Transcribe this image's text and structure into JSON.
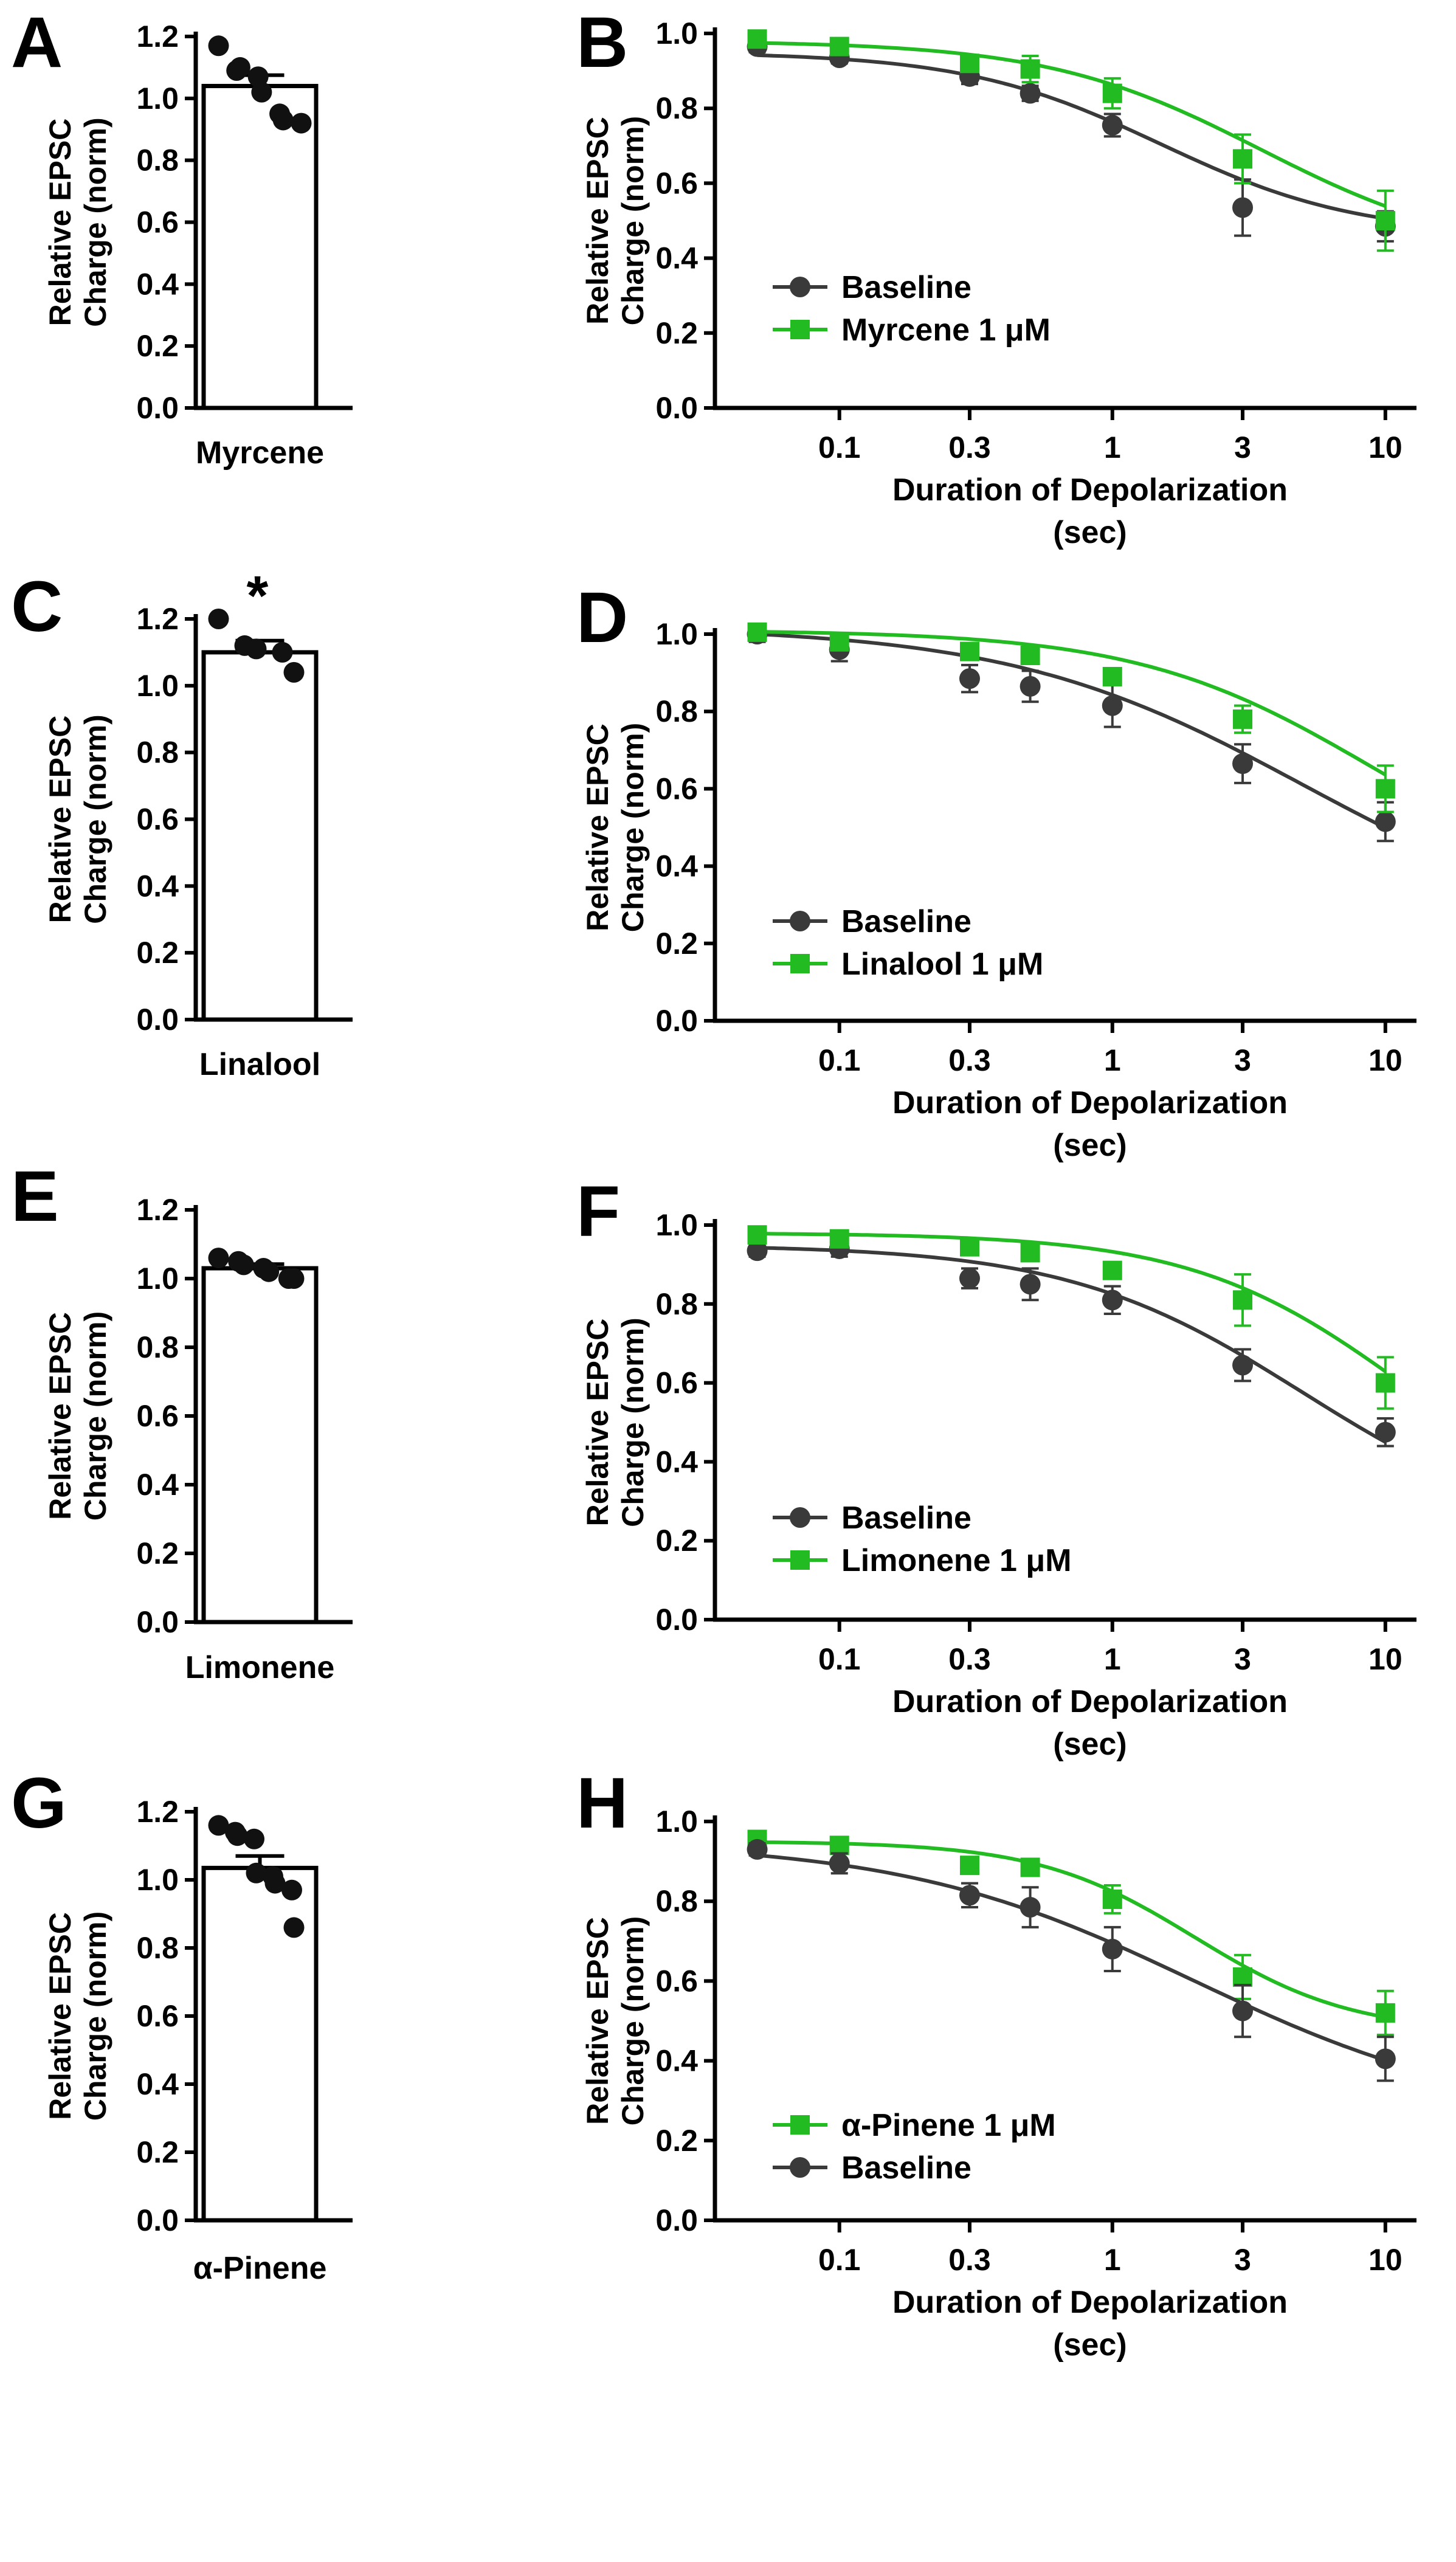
{
  "figure": {
    "colors": {
      "baseline": "#3a3a3a",
      "treatment": "#22bb22",
      "axis": "#000000",
      "bar_fill": "#ffffff"
    }
  },
  "chart_data": [
    {
      "panel": "A",
      "type": "bar",
      "category": "Myrcene",
      "mean": 1.04,
      "sem": 0.035,
      "points": [
        1.17,
        1.09,
        1.1,
        1.07,
        1.02,
        0.95,
        0.93,
        0.92
      ],
      "ylabel": [
        "Relative EPSC",
        "Charge (norm)"
      ],
      "ylim": [
        0,
        1.2
      ],
      "yticks": [
        0.0,
        0.2,
        0.4,
        0.6,
        0.8,
        1.0,
        1.2
      ],
      "ytick_labels": [
        "0.0",
        "0.2",
        "0.4",
        "0.6",
        "0.8",
        "1.0",
        "1.2"
      ],
      "significance": ""
    },
    {
      "panel": "B",
      "type": "line",
      "xscale": "log",
      "xlabel": [
        "Duration of Depolarization",
        "(sec)"
      ],
      "ylabel": [
        "Relative EPSC",
        "Charge (norm)"
      ],
      "ylim": [
        0,
        1.0
      ],
      "yticks": [
        0.0,
        0.2,
        0.4,
        0.6,
        0.8,
        1.0
      ],
      "ytick_labels": [
        "0.0",
        "0.2",
        "0.4",
        "0.6",
        "0.8",
        "1.0"
      ],
      "xticks": [
        0.1,
        0.3,
        1,
        3,
        10
      ],
      "xtick_labels": [
        "0.1",
        "0.3",
        "1",
        "3",
        "10"
      ],
      "x": [
        0.05,
        0.1,
        0.3,
        0.5,
        1,
        3,
        10
      ],
      "legend_position": "bottom-left",
      "series": [
        {
          "name": "Baseline",
          "marker": "circle",
          "color_key": "baseline",
          "values": [
            0.965,
            0.935,
            0.885,
            0.84,
            0.755,
            0.535,
            0.485
          ],
          "errors": [
            0.015,
            0.015,
            0.02,
            0.02,
            0.03,
            0.075,
            0.04
          ],
          "fit": {
            "top": 0.95,
            "bottom": 0.46,
            "ec50": 1.5,
            "hill": 1.2
          }
        },
        {
          "name": "Myrcene 1 μM",
          "marker": "square",
          "color_key": "treatment",
          "values": [
            0.985,
            0.965,
            0.92,
            0.905,
            0.84,
            0.665,
            0.5
          ],
          "errors": [
            0.015,
            0.015,
            0.02,
            0.035,
            0.04,
            0.065,
            0.08
          ],
          "fit": {
            "top": 0.98,
            "bottom": 0.4,
            "ec50": 3.5,
            "hill": 1.1
          }
        }
      ]
    },
    {
      "panel": "C",
      "type": "bar",
      "category": "Linalool",
      "mean": 1.1,
      "sem": 0.035,
      "points": [
        1.2,
        1.12,
        1.11,
        1.1,
        1.04
      ],
      "ylabel": [
        "Relative EPSC",
        "Charge (norm)"
      ],
      "ylim": [
        0,
        1.2
      ],
      "yticks": [
        0.0,
        0.2,
        0.4,
        0.6,
        0.8,
        1.0,
        1.2
      ],
      "ytick_labels": [
        "0.0",
        "0.2",
        "0.4",
        "0.6",
        "0.8",
        "1.0",
        "1.2"
      ],
      "significance": "*"
    },
    {
      "panel": "D",
      "type": "line",
      "xscale": "log",
      "xlabel": [
        "Duration of Depolarization",
        "(sec)"
      ],
      "ylabel": [
        "Relative EPSC",
        "Charge (norm)"
      ],
      "ylim": [
        0,
        1.0
      ],
      "yticks": [
        0.0,
        0.2,
        0.4,
        0.6,
        0.8,
        1.0
      ],
      "ytick_labels": [
        "0.0",
        "0.2",
        "0.4",
        "0.6",
        "0.8",
        "1.0"
      ],
      "xticks": [
        0.1,
        0.3,
        1,
        3,
        10
      ],
      "xtick_labels": [
        "0.1",
        "0.3",
        "1",
        "3",
        "10"
      ],
      "x": [
        0.05,
        0.1,
        0.3,
        0.5,
        1,
        3,
        10
      ],
      "legend_position": "bottom-left",
      "series": [
        {
          "name": "Baseline",
          "marker": "circle",
          "color_key": "baseline",
          "values": [
            1.0,
            0.96,
            0.885,
            0.865,
            0.815,
            0.665,
            0.515
          ],
          "errors": [
            0.02,
            0.03,
            0.035,
            0.04,
            0.055,
            0.05,
            0.05
          ],
          "fit": {
            "top": 1.02,
            "bottom": 0.2,
            "ec50": 5.0,
            "hill": 0.8
          }
        },
        {
          "name": "Linalool 1 μM",
          "marker": "square",
          "color_key": "treatment",
          "values": [
            1.005,
            0.98,
            0.955,
            0.945,
            0.89,
            0.78,
            0.6
          ],
          "errors": [
            0.015,
            0.015,
            0.015,
            0.015,
            0.015,
            0.035,
            0.06
          ],
          "fit": {
            "top": 1.01,
            "bottom": 0.3,
            "ec50": 9.0,
            "hill": 1.0
          }
        }
      ]
    },
    {
      "panel": "E",
      "type": "bar",
      "category": "Limonene",
      "mean": 1.03,
      "sem": 0.012,
      "points": [
        1.06,
        1.05,
        1.04,
        1.03,
        1.02,
        1.0,
        1.0
      ],
      "ylabel": [
        "Relative EPSC",
        "Charge (norm)"
      ],
      "ylim": [
        0,
        1.2
      ],
      "yticks": [
        0.0,
        0.2,
        0.4,
        0.6,
        0.8,
        1.0,
        1.2
      ],
      "ytick_labels": [
        "0.0",
        "0.2",
        "0.4",
        "0.6",
        "0.8",
        "1.0",
        "1.2"
      ],
      "significance": ""
    },
    {
      "panel": "F",
      "type": "line",
      "xscale": "log",
      "xlabel": [
        "Duration of Depolarization",
        "(sec)"
      ],
      "ylabel": [
        "Relative EPSC",
        "Charge (norm)"
      ],
      "ylim": [
        0,
        1.0
      ],
      "yticks": [
        0.0,
        0.2,
        0.4,
        0.6,
        0.8,
        1.0
      ],
      "ytick_labels": [
        "0.0",
        "0.2",
        "0.4",
        "0.6",
        "0.8",
        "1.0"
      ],
      "xticks": [
        0.1,
        0.3,
        1,
        3,
        10
      ],
      "xtick_labels": [
        "0.1",
        "0.3",
        "1",
        "3",
        "10"
      ],
      "x": [
        0.05,
        0.1,
        0.3,
        0.5,
        1,
        3,
        10
      ],
      "legend_position": "bottom-left",
      "series": [
        {
          "name": "Baseline",
          "marker": "circle",
          "color_key": "baseline",
          "values": [
            0.935,
            0.94,
            0.865,
            0.85,
            0.81,
            0.645,
            0.475
          ],
          "errors": [
            0.015,
            0.02,
            0.025,
            0.04,
            0.035,
            0.04,
            0.035
          ],
          "fit": {
            "top": 0.95,
            "bottom": 0.2,
            "ec50": 5.0,
            "hill": 1.0
          }
        },
        {
          "name": "Limonene 1 μM",
          "marker": "square",
          "color_key": "treatment",
          "values": [
            0.975,
            0.965,
            0.945,
            0.93,
            0.885,
            0.81,
            0.6
          ],
          "errors": [
            0.015,
            0.015,
            0.015,
            0.015,
            0.015,
            0.065,
            0.065
          ],
          "fit": {
            "top": 0.98,
            "bottom": 0.2,
            "ec50": 12.0,
            "hill": 1.1
          }
        }
      ]
    },
    {
      "panel": "G",
      "type": "bar",
      "category": "α-Pinene",
      "mean": 1.035,
      "sem": 0.035,
      "points": [
        1.16,
        1.14,
        1.13,
        1.12,
        1.02,
        1.01,
        0.99,
        0.97,
        0.86
      ],
      "ylabel": [
        "Relative EPSC",
        "Charge (norm)"
      ],
      "ylim": [
        0,
        1.2
      ],
      "yticks": [
        0.0,
        0.2,
        0.4,
        0.6,
        0.8,
        1.0,
        1.2
      ],
      "ytick_labels": [
        "0.0",
        "0.2",
        "0.4",
        "0.6",
        "0.8",
        "1.0",
        "1.2"
      ],
      "significance": ""
    },
    {
      "panel": "H",
      "type": "line",
      "xscale": "log",
      "xlabel": [
        "Duration of Depolarization",
        "(sec)"
      ],
      "ylabel": [
        "Relative EPSC",
        "Charge (norm)"
      ],
      "ylim": [
        0,
        1.0
      ],
      "yticks": [
        0.0,
        0.2,
        0.4,
        0.6,
        0.8,
        1.0
      ],
      "ytick_labels": [
        "0.0",
        "0.2",
        "0.4",
        "0.6",
        "0.8",
        "1.0"
      ],
      "xticks": [
        0.1,
        0.3,
        1,
        3,
        10
      ],
      "xtick_labels": [
        "0.1",
        "0.3",
        "1",
        "3",
        "10"
      ],
      "x": [
        0.05,
        0.1,
        0.3,
        0.5,
        1,
        3,
        10
      ],
      "legend_position": "bottom-left",
      "series": [
        {
          "name": "α-Pinene 1 μM",
          "marker": "square",
          "color_key": "treatment",
          "values": [
            0.955,
            0.94,
            0.89,
            0.885,
            0.805,
            0.61,
            0.52
          ],
          "errors": [
            0.015,
            0.015,
            0.015,
            0.015,
            0.035,
            0.055,
            0.055
          ],
          "fit": {
            "top": 0.95,
            "bottom": 0.47,
            "ec50": 2.0,
            "hill": 1.5
          }
        },
        {
          "name": "Baseline",
          "marker": "circle",
          "color_key": "baseline",
          "values": [
            0.93,
            0.895,
            0.815,
            0.785,
            0.68,
            0.525,
            0.405
          ],
          "errors": [
            0.015,
            0.025,
            0.03,
            0.05,
            0.055,
            0.065,
            0.055
          ],
          "fit": {
            "top": 0.95,
            "bottom": 0.25,
            "ec50": 2.0,
            "hill": 0.8
          }
        }
      ]
    }
  ]
}
